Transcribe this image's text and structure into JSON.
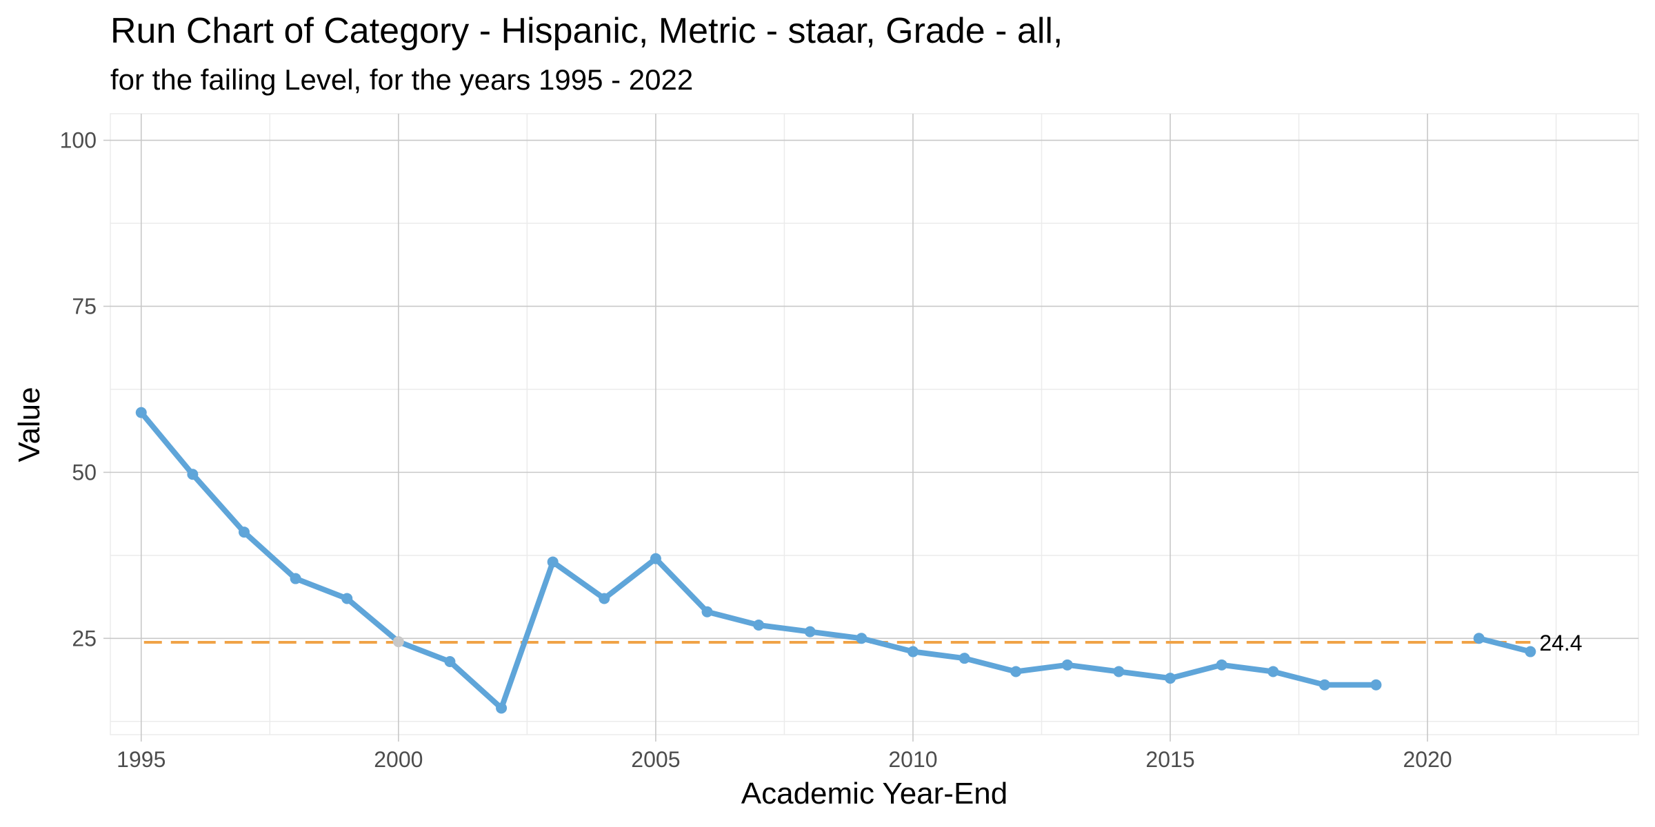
{
  "title": "Run Chart of Category - Hispanic, Metric - staar, Grade - all,",
  "subtitle": "for the failing Level, for the years 1995 - 2022",
  "chart_data": {
    "type": "line",
    "title": "Run Chart of Category - Hispanic, Metric - staar, Grade - all,",
    "subtitle": "for the failing Level, for the years 1995 - 2022",
    "xlabel": "Academic Year-End",
    "ylabel": "Value",
    "xlim": [
      1994.4,
      2024.1
    ],
    "ylim": [
      10.5,
      104
    ],
    "x_ticks": [
      1995,
      2000,
      2005,
      2010,
      2015,
      2020
    ],
    "x_tick_labels": [
      "1995",
      "2000",
      "2005",
      "2010",
      "2015",
      "2020"
    ],
    "y_ticks": [
      25,
      50,
      75,
      100
    ],
    "y_tick_labels": [
      "25",
      "50",
      "75",
      "100"
    ],
    "grid": true,
    "series": [
      {
        "color": "#5fa5d9",
        "x": [
          1995,
          1996,
          1997,
          1998,
          1999,
          2000,
          2001,
          2002,
          2003,
          2004,
          2005,
          2006,
          2007,
          2008,
          2009,
          2010,
          2011,
          2012,
          2013,
          2014,
          2015,
          2016,
          2017,
          2018,
          2019,
          2021,
          2022
        ],
        "y": [
          59,
          49.7,
          41,
          34,
          31,
          24.5,
          21.5,
          14.5,
          36.5,
          31,
          37,
          29,
          27,
          26,
          25,
          23,
          22,
          20,
          21,
          20,
          19,
          21,
          20,
          18,
          18,
          25,
          23
        ],
        "highlight_index": 5,
        "highlight_color": "#c8c8c8"
      }
    ],
    "reference_line": {
      "value": 24.4,
      "label": "24.4",
      "color": "#f0a347",
      "style": "dashed"
    }
  }
}
